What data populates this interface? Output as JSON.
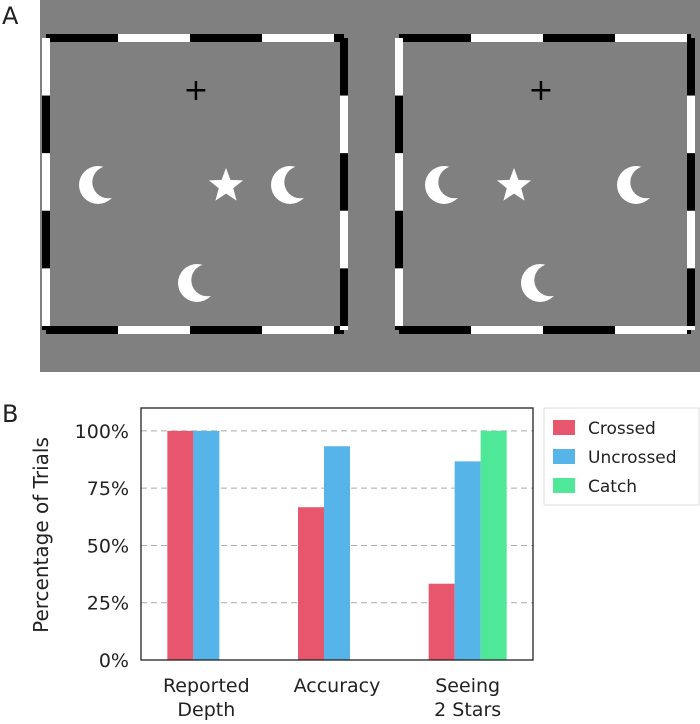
{
  "panels": {
    "a_label": "A",
    "b_label": "B"
  },
  "stimulus": {
    "background_color": "#808080",
    "fixation_symbol": "+",
    "fusion_frame_colors": [
      "#000000",
      "#ffffff"
    ],
    "left_view": {
      "shapes": [
        {
          "type": "moon-icon",
          "color": "#ffffff"
        },
        {
          "type": "star-icon",
          "color": "#ffffff"
        },
        {
          "type": "moon-icon",
          "color": "#ffffff"
        },
        {
          "type": "moon-icon",
          "color": "#ffffff"
        }
      ]
    },
    "right_view": {
      "shapes": [
        {
          "type": "moon-icon",
          "color": "#ffffff"
        },
        {
          "type": "star-icon",
          "color": "#ffffff"
        },
        {
          "type": "moon-icon",
          "color": "#ffffff"
        },
        {
          "type": "moon-icon",
          "color": "#ffffff"
        }
      ]
    }
  },
  "chart_data": {
    "type": "bar",
    "title": "",
    "xlabel": "",
    "ylabel": "Percentage of Trials",
    "ylim": [
      0,
      110
    ],
    "yticks": [
      0,
      25,
      50,
      75,
      100
    ],
    "ytick_labels": [
      "0%",
      "25%",
      "50%",
      "75%",
      "100%"
    ],
    "grid": "horizontal dashed",
    "legend_position": "outside-right-top",
    "categories": [
      [
        "Reported",
        "Depth"
      ],
      [
        "Accuracy"
      ],
      [
        "Seeing",
        "2 Stars"
      ]
    ],
    "series": [
      {
        "name": "Crossed",
        "color": "#e8566e",
        "values": [
          100,
          66.7,
          33.3
        ]
      },
      {
        "name": "Uncrossed",
        "color": "#56b4e9",
        "values": [
          100,
          93.3,
          86.7
        ]
      },
      {
        "name": "Catch",
        "color": "#4ee898",
        "values": [
          null,
          null,
          100
        ]
      }
    ]
  }
}
